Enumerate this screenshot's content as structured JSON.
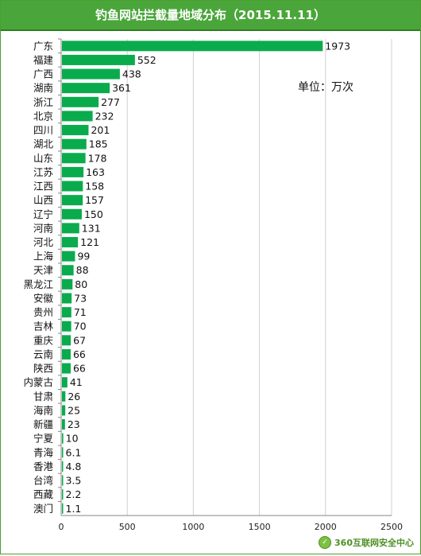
{
  "header": {
    "title": "钓鱼网站拦截量地域分布（2015.11.11）"
  },
  "footer": {
    "brand": "360互联网安全中心"
  },
  "colors": {
    "bar": "#0aab4d",
    "header": "#4aa63a",
    "grid": "#d0d0d0"
  },
  "chart_data": {
    "type": "bar",
    "orientation": "horizontal",
    "title": "钓鱼网站拦截量地域分布（2015.11.11）",
    "unit_label": "单位：万次",
    "xlim": [
      0,
      2500
    ],
    "x_ticks": [
      "0",
      "500",
      "1000",
      "1500",
      "2000",
      "2500"
    ],
    "grid": true,
    "legend": "none",
    "categories": [
      "广东",
      "福建",
      "广西",
      "湖南",
      "浙江",
      "北京",
      "四川",
      "湖北",
      "山东",
      "江苏",
      "江西",
      "山西",
      "辽宁",
      "河南",
      "河北",
      "上海",
      "天津",
      "黑龙江",
      "安徽",
      "贵州",
      "吉林",
      "重庆",
      "云南",
      "陕西",
      "内蒙古",
      "甘肃",
      "海南",
      "新疆",
      "宁夏",
      "青海",
      "香港",
      "台湾",
      "西藏",
      "澳门"
    ],
    "values": [
      1973,
      552,
      438,
      361,
      277,
      232,
      201,
      185,
      178,
      163,
      158,
      157,
      150,
      131,
      121,
      99,
      88,
      80,
      73,
      71,
      70,
      67,
      66,
      66,
      41,
      26,
      25,
      23,
      10,
      6.1,
      4.8,
      3.5,
      2.2,
      1.1
    ],
    "value_labels": [
      "1973",
      "552",
      "438",
      "361",
      "277",
      "232",
      "201",
      "185",
      "178",
      "163",
      "158",
      "157",
      "150",
      "131",
      "121",
      "99",
      "88",
      "80",
      "73",
      "71",
      "70",
      "67",
      "66",
      "66",
      "41",
      "26",
      "25",
      "23",
      "10",
      "6.1",
      "4.8",
      "3.5",
      "2.2",
      "1.1"
    ]
  }
}
